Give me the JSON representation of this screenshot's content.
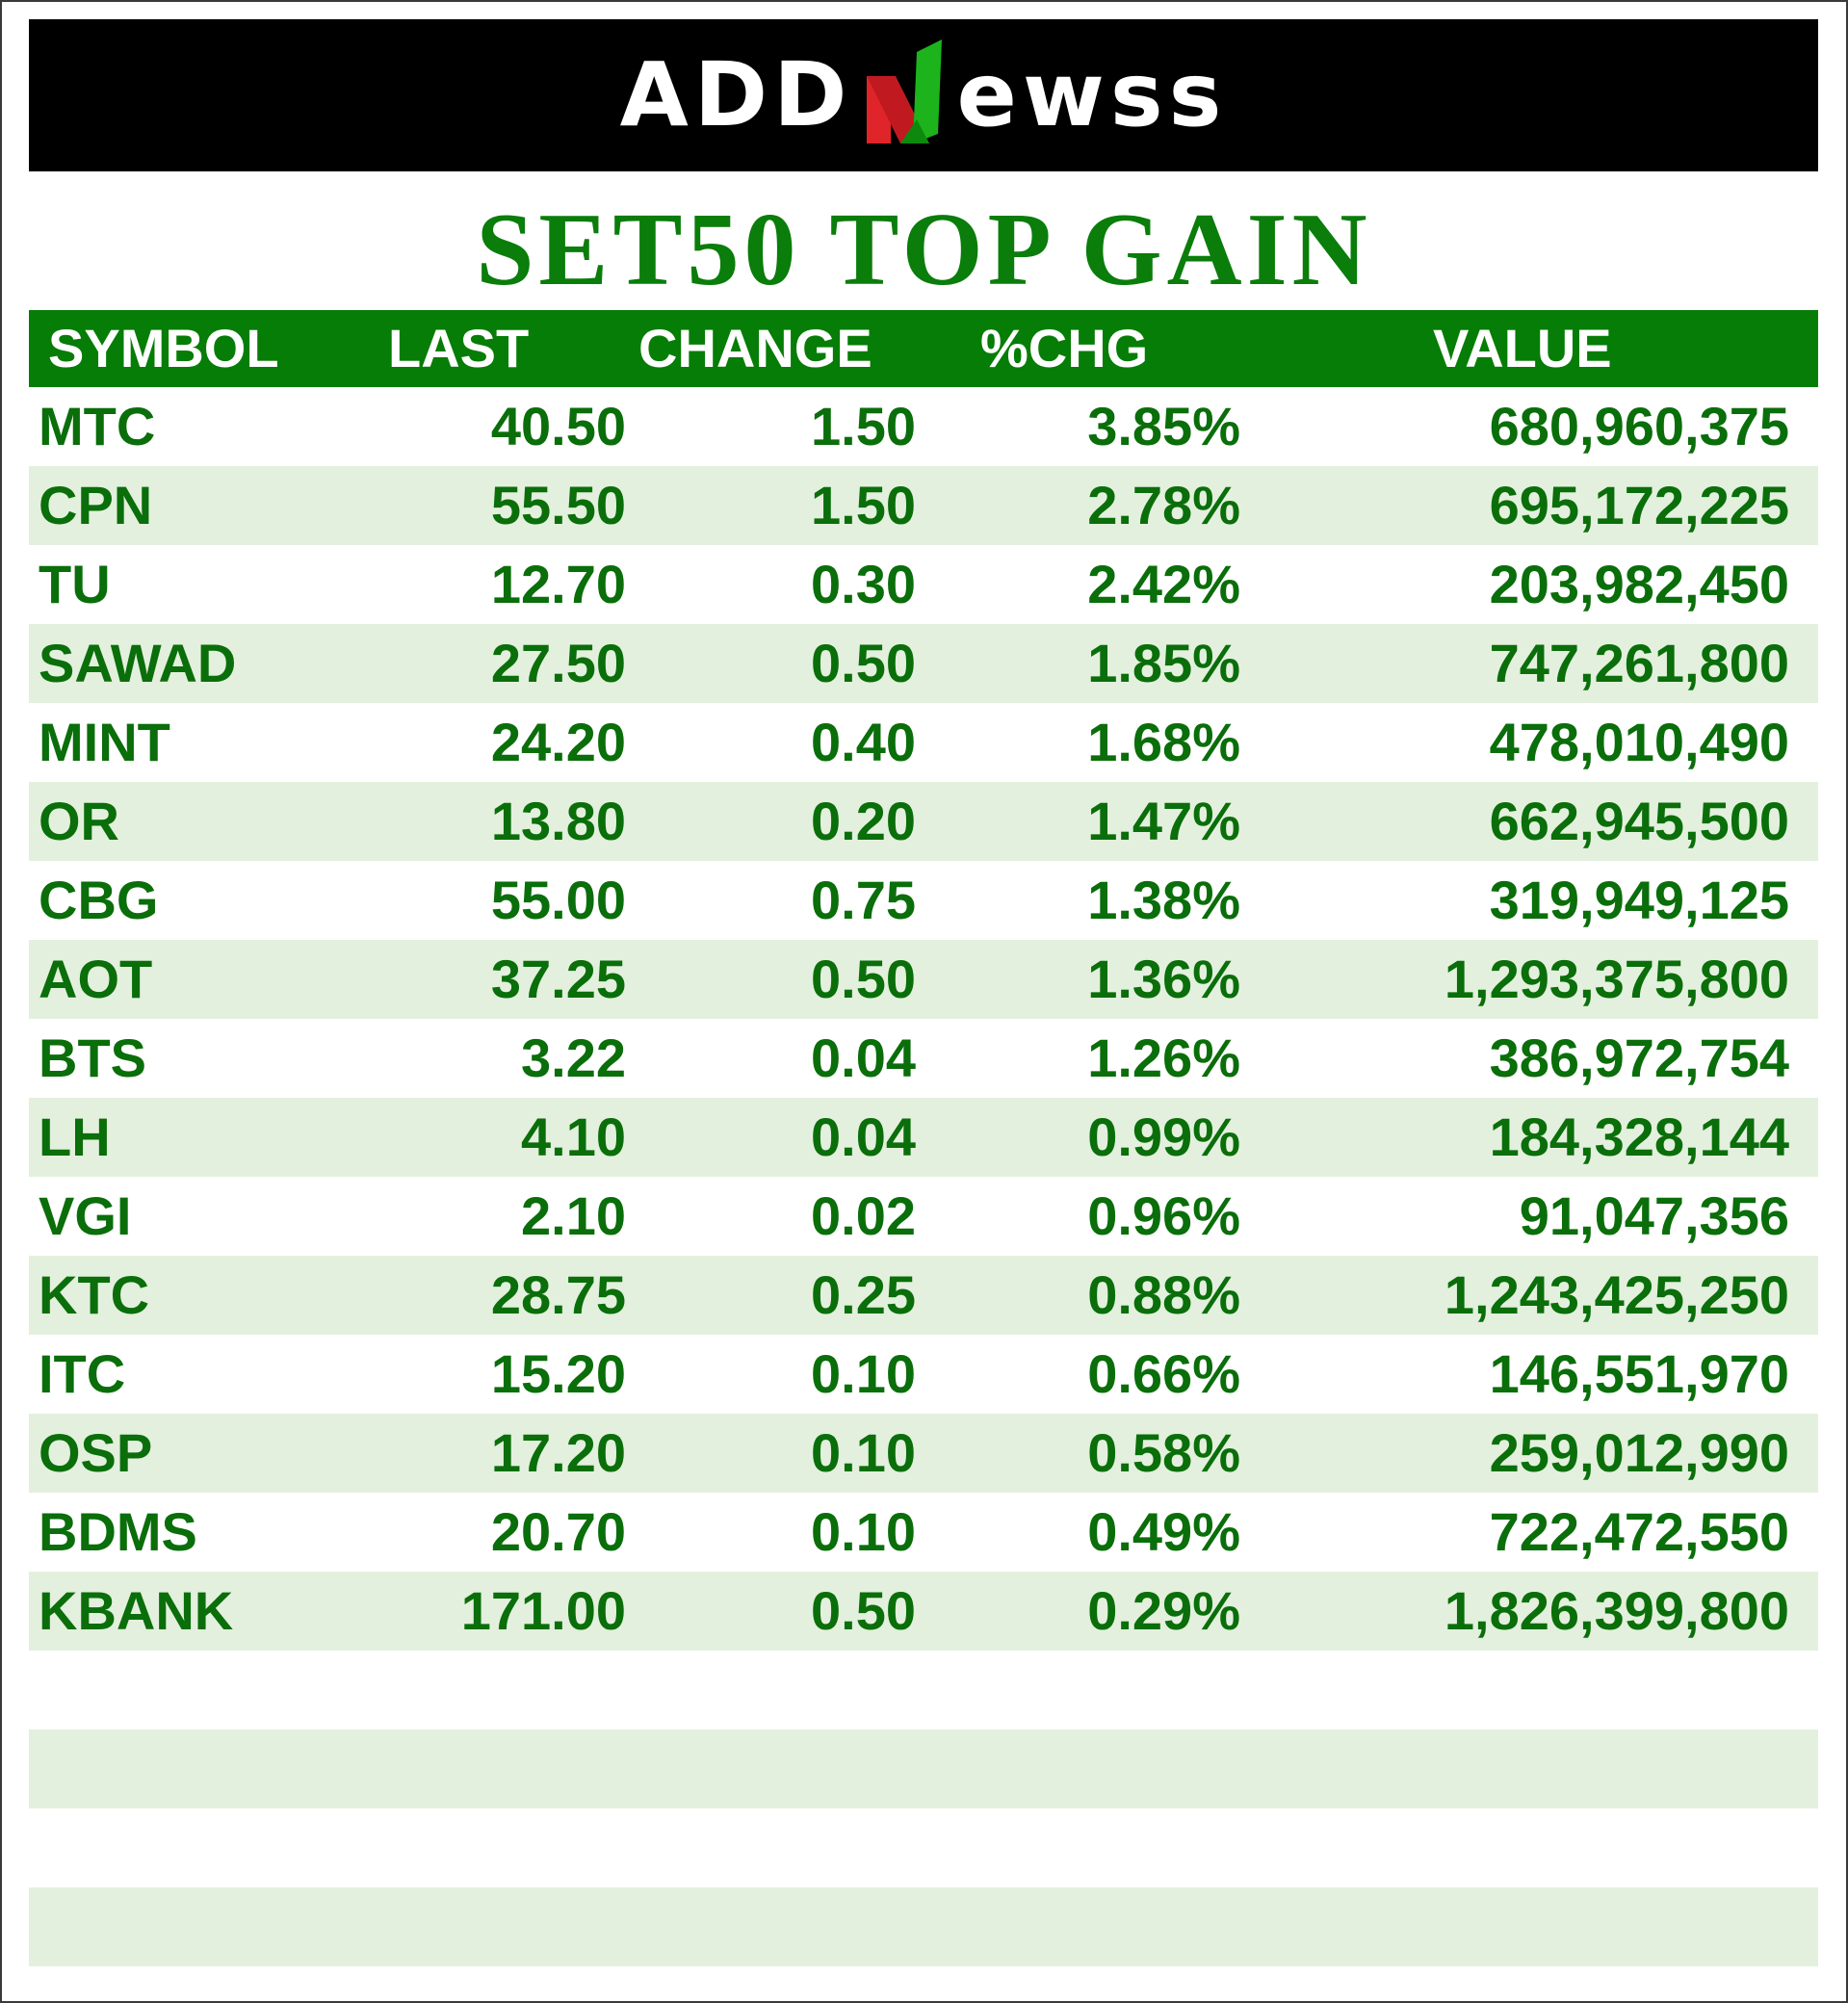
{
  "brand": {
    "name_left": "ADD",
    "name_right": "ewss",
    "colors": {
      "banner_bg": "#000000",
      "mark_green": "#1db31d",
      "mark_red": "#e0252a"
    }
  },
  "title": "SET50 TOP GAIN",
  "table": {
    "headers": [
      "SYMBOL",
      "LAST",
      "CHANGE",
      "%CHG",
      "VALUE"
    ],
    "rows": [
      [
        "MTC",
        "40.50",
        "1.50",
        "3.85%",
        "680,960,375"
      ],
      [
        "CPN",
        "55.50",
        "1.50",
        "2.78%",
        "695,172,225"
      ],
      [
        "TU",
        "12.70",
        "0.30",
        "2.42%",
        "203,982,450"
      ],
      [
        "SAWAD",
        "27.50",
        "0.50",
        "1.85%",
        "747,261,800"
      ],
      [
        "MINT",
        "24.20",
        "0.40",
        "1.68%",
        "478,010,490"
      ],
      [
        "OR",
        "13.80",
        "0.20",
        "1.47%",
        "662,945,500"
      ],
      [
        "CBG",
        "55.00",
        "0.75",
        "1.38%",
        "319,949,125"
      ],
      [
        "AOT",
        "37.25",
        "0.50",
        "1.36%",
        "1,293,375,800"
      ],
      [
        "BTS",
        "3.22",
        "0.04",
        "1.26%",
        "386,972,754"
      ],
      [
        "LH",
        "4.10",
        "0.04",
        "0.99%",
        "184,328,144"
      ],
      [
        "VGI",
        "2.10",
        "0.02",
        "0.96%",
        "91,047,356"
      ],
      [
        "KTC",
        "28.75",
        "0.25",
        "0.88%",
        "1,243,425,250"
      ],
      [
        "ITC",
        "15.20",
        "0.10",
        "0.66%",
        "146,551,970"
      ],
      [
        "OSP",
        "17.20",
        "0.10",
        "0.58%",
        "259,012,990"
      ],
      [
        "BDMS",
        "20.70",
        "0.10",
        "0.49%",
        "722,472,550"
      ],
      [
        "KBANK",
        "171.00",
        "0.50",
        "0.29%",
        "1,826,399,800"
      ]
    ],
    "colors": {
      "header_bg": "#067d06",
      "text": "#0a6e0a",
      "shade": "#e3f0dd"
    }
  }
}
